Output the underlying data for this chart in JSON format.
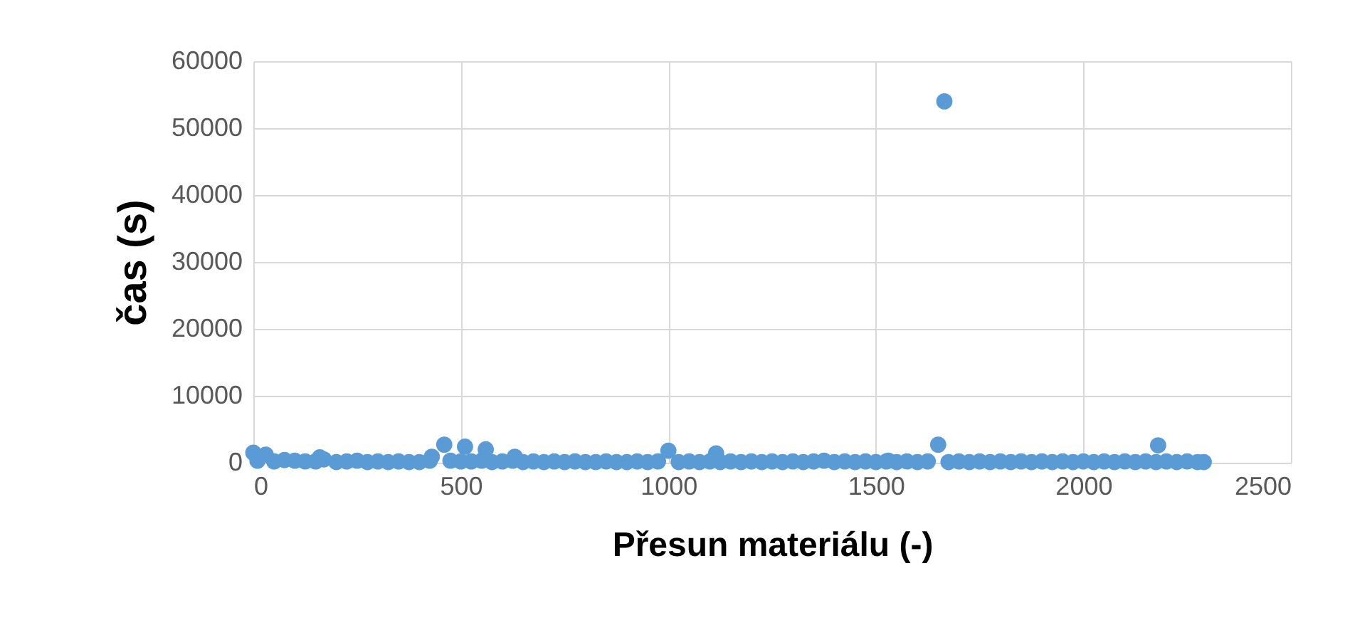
{
  "chart_data": {
    "type": "scatter",
    "xlabel": "Přesun materiálu (-)",
    "ylabel": "čas (s)",
    "xlim": [
      0,
      2500
    ],
    "xticks": [
      0,
      500,
      1000,
      1500,
      2000,
      2500
    ],
    "ylim": [
      0,
      60000
    ],
    "yticks": [
      0,
      10000,
      20000,
      30000,
      40000,
      50000,
      60000
    ],
    "grid": true,
    "marker": "circle",
    "series": [
      {
        "color": "#5b9bd5",
        "x": [
          0,
          10,
          30,
          50,
          75,
          100,
          125,
          150,
          160,
          170,
          200,
          225,
          250,
          275,
          300,
          325,
          350,
          375,
          400,
          425,
          430,
          460,
          475,
          500,
          510,
          525,
          550,
          560,
          575,
          600,
          625,
          630,
          650,
          675,
          700,
          725,
          750,
          775,
          800,
          825,
          850,
          875,
          900,
          925,
          950,
          975,
          1000,
          1025,
          1050,
          1075,
          1100,
          1115,
          1125,
          1150,
          1175,
          1200,
          1225,
          1250,
          1275,
          1300,
          1325,
          1350,
          1375,
          1400,
          1425,
          1450,
          1475,
          1500,
          1525,
          1530,
          1550,
          1575,
          1600,
          1625,
          1650,
          1665,
          1675,
          1700,
          1725,
          1750,
          1775,
          1800,
          1825,
          1850,
          1875,
          1900,
          1925,
          1950,
          1975,
          2000,
          2025,
          2050,
          2075,
          2100,
          2125,
          2150,
          2175,
          2180,
          2200,
          2225,
          2250,
          2275,
          2290
        ],
        "values": [
          1500,
          300,
          1200,
          200,
          400,
          300,
          200,
          200,
          800,
          500,
          100,
          200,
          300,
          100,
          200,
          100,
          200,
          100,
          100,
          300,
          900,
          2700,
          300,
          200,
          2400,
          200,
          300,
          2000,
          100,
          200,
          300,
          900,
          100,
          200,
          100,
          200,
          100,
          200,
          100,
          100,
          200,
          100,
          100,
          200,
          100,
          200,
          1800,
          100,
          200,
          100,
          200,
          1400,
          100,
          200,
          100,
          200,
          100,
          200,
          100,
          200,
          100,
          200,
          300,
          100,
          200,
          100,
          200,
          100,
          200,
          300,
          100,
          200,
          100,
          200,
          2700,
          54000,
          100,
          200,
          100,
          200,
          100,
          200,
          100,
          200,
          100,
          200,
          100,
          200,
          100,
          200,
          100,
          200,
          100,
          200,
          100,
          200,
          100,
          2600,
          200,
          100,
          200,
          100,
          100
        ]
      }
    ]
  }
}
